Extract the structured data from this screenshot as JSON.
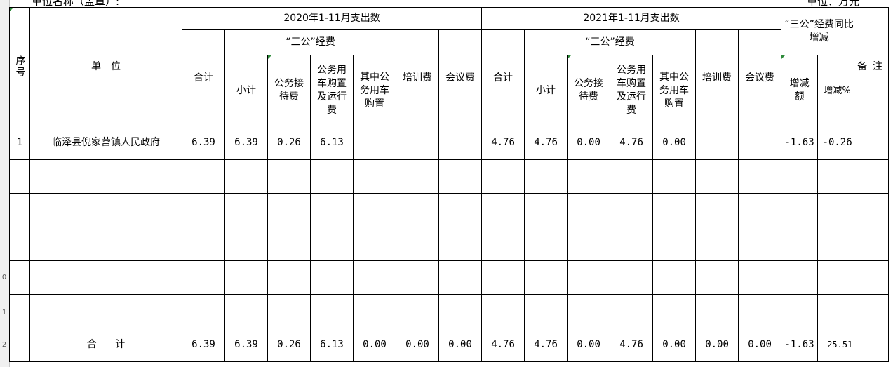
{
  "page": {
    "top_left_note": "单位名称（盖章）:",
    "top_right_note": "单位：万元"
  },
  "row_numbers": [
    "0",
    "1",
    "2"
  ],
  "headers": {
    "seq": "序号",
    "unit": "单　位",
    "group_2020": "2020年1-11月支出数",
    "group_2021": "2021年1-11月支出数",
    "sangong": "“三公”经费",
    "total": "合计",
    "subtotal": "小计",
    "reception": "公务接待费",
    "vehicle": "公务用车购置及运行费",
    "vehicle_purchase": "其中公务用车购置",
    "training": "培训费",
    "meeting": "会议费",
    "change_group": "“三公”经费同比增减",
    "change_amount": "增减额",
    "change_pct": "增减%",
    "remark": "备注"
  },
  "rows": [
    {
      "seq": "1",
      "unit": "临泽县倪家营镇人民政府",
      "y2020_total": "6.39",
      "y2020_subtotal": "6.39",
      "y2020_reception": "0.26",
      "y2020_vehicle": "6.13",
      "y2020_vehicle_purchase": "",
      "y2020_training": "",
      "y2020_meeting": "",
      "y2021_total": "4.76",
      "y2021_subtotal": "4.76",
      "y2021_reception": "0.00",
      "y2021_vehicle": "4.76",
      "y2021_vehicle_purchase": "0.00",
      "y2021_training": "",
      "y2021_meeting": "",
      "change_amount": "-1.63",
      "change_pct": "-0.26",
      "remark": ""
    }
  ],
  "totals": {
    "label": "合 计",
    "y2020_total": "6.39",
    "y2020_subtotal": "6.39",
    "y2020_reception": "0.26",
    "y2020_vehicle": "6.13",
    "y2020_vehicle_purchase": "0.00",
    "y2020_training": "0.00",
    "y2020_meeting": "0.00",
    "y2021_total": "4.76",
    "y2021_subtotal": "4.76",
    "y2021_reception": "0.00",
    "y2021_vehicle": "4.76",
    "y2021_vehicle_purchase": "0.00",
    "y2021_training": "0.00",
    "y2021_meeting": "0.00",
    "change_amount": "-1.63",
    "change_pct": "-25.51"
  }
}
